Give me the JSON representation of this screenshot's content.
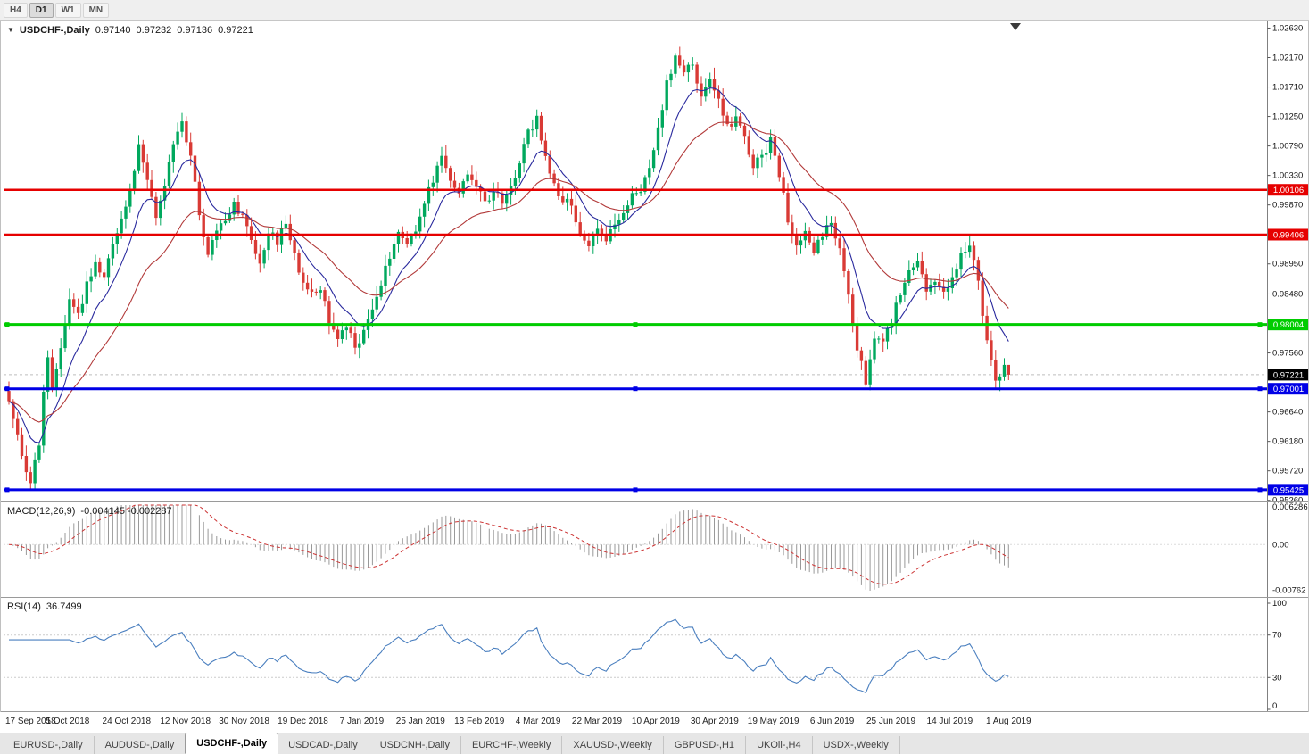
{
  "toolbar": {
    "timeframes": [
      {
        "label": "H4",
        "active": false
      },
      {
        "label": "D1",
        "active": true
      },
      {
        "label": "W1",
        "active": false
      },
      {
        "label": "MN",
        "active": false
      }
    ]
  },
  "header": {
    "symbol": "USDCHF-,Daily",
    "open": "0.97140",
    "high": "0.97232",
    "low": "0.97136",
    "close": "0.97221"
  },
  "price_axis": {
    "labels": [
      "1.02630",
      "1.02170",
      "1.01710",
      "1.01250",
      "1.00790",
      "1.00330",
      "0.99870",
      "0.98950",
      "0.98480",
      "0.97560",
      "0.96640",
      "0.96180",
      "0.95720",
      "0.95260"
    ]
  },
  "hlines": [
    {
      "price": 1.00106,
      "label": "1.00106",
      "color": "#e60000",
      "width": 2.5,
      "markers": false
    },
    {
      "price": 0.99406,
      "label": "0.99406",
      "color": "#e60000",
      "width": 2.5,
      "markers": false
    },
    {
      "price": 0.98004,
      "label": "0.98004",
      "color": "#00cc00",
      "width": 3,
      "markers": true
    },
    {
      "price": 0.97001,
      "label": "0.97001",
      "color": "#0000e6",
      "width": 3,
      "markers": true
    },
    {
      "price": 0.95425,
      "label": "0.95425",
      "color": "#0000e6",
      "width": 3,
      "markers": true
    }
  ],
  "current_price": {
    "value": 0.97221,
    "label": "0.97221"
  },
  "macd_panel": {
    "title": "MACD(12,26,9)",
    "values": "-0.004145 -0.002287",
    "axis_max": "0.006286",
    "axis_zero": "0.00",
    "axis_min": "-0.00762"
  },
  "rsi_panel": {
    "title": "RSI(14)",
    "value": "36.7499",
    "axis": [
      "100",
      "70",
      "30",
      "0"
    ],
    "levels": [
      70,
      30
    ]
  },
  "date_axis": [
    "17 Sep 2018",
    "5 Oct 2018",
    "24 Oct 2018",
    "12 Nov 2018",
    "30 Nov 2018",
    "19 Dec 2018",
    "7 Jan 2019",
    "25 Jan 2019",
    "13 Feb 2019",
    "4 Mar 2019",
    "22 Mar 2019",
    "10 Apr 2019",
    "30 Apr 2019",
    "19 May 2019",
    "6 Jun 2019",
    "25 Jun 2019",
    "14 Jul 2019",
    "1 Aug 2019"
  ],
  "tabs": [
    {
      "label": "EURUSD-,Daily",
      "active": false
    },
    {
      "label": "AUDUSD-,Daily",
      "active": false
    },
    {
      "label": "USDCHF-,Daily",
      "active": true
    },
    {
      "label": "USDCAD-,Daily",
      "active": false
    },
    {
      "label": "USDCNH-,Daily",
      "active": false
    },
    {
      "label": "EURCHF-,Weekly",
      "active": false
    },
    {
      "label": "XAUUSD-,Weekly",
      "active": false
    },
    {
      "label": "GBPUSD-,H1",
      "active": false
    },
    {
      "label": "UKOil-,H4",
      "active": false
    },
    {
      "label": "USDX-,Weekly",
      "active": false
    }
  ],
  "colors": {
    "up": "#00a85d",
    "down": "#d93a35",
    "ma_fast": "#2a2a9e",
    "ma_slow": "#b23a3a",
    "macd_hist": "#999999",
    "macd_signal": "#cc3333",
    "rsi": "#4a7fbf",
    "axis_text": "#111111",
    "separator": "#9a9a9a"
  },
  "chart_data": {
    "type": "candlestick",
    "symbol": "USDCHF",
    "timeframe": "Daily",
    "bars": 232,
    "date_range": [
      "17 Sep 2018",
      "14 Aug 2019"
    ],
    "price_range": [
      0.9526,
      1.0263
    ],
    "support_resistance": [
      1.00106,
      0.99406,
      0.98004,
      0.97001,
      0.95425
    ],
    "last_ohlc": {
      "open": 0.9714,
      "high": 0.97232,
      "low": 0.97136,
      "close": 0.97221
    },
    "indicators": {
      "macd": {
        "fast": 12,
        "slow": 26,
        "signal": 9,
        "last_main": -0.004145,
        "last_signal": -0.002287,
        "axis": [
          0.006286,
          0,
          -0.00762
        ]
      },
      "rsi": {
        "period": 14,
        "last": 36.7499,
        "levels": [
          30,
          70
        ]
      },
      "moving_averages": [
        {
          "type": "ema",
          "period": 10
        },
        {
          "type": "ema",
          "period": 28
        }
      ]
    },
    "close_path": [
      [
        0,
        0.968
      ],
      [
        1,
        0.9658
      ],
      [
        2,
        0.9628
      ],
      [
        4,
        0.9566
      ],
      [
        5,
        0.9551
      ],
      [
        7,
        0.9618
      ],
      [
        8,
        0.97
      ],
      [
        9,
        0.9746
      ],
      [
        10,
        0.9702
      ],
      [
        12,
        0.9762
      ],
      [
        14,
        0.984
      ],
      [
        16,
        0.9816
      ],
      [
        18,
        0.9861
      ],
      [
        20,
        0.9896
      ],
      [
        22,
        0.9871
      ],
      [
        24,
        0.9931
      ],
      [
        26,
        0.9966
      ],
      [
        28,
        1.0011
      ],
      [
        30,
        1.0076
      ],
      [
        32,
        1.0031
      ],
      [
        34,
        0.9966
      ],
      [
        36,
        1.0021
      ],
      [
        38,
        1.0076
      ],
      [
        40,
        1.0116
      ],
      [
        42,
        1.0061
      ],
      [
        44,
        0.9976
      ],
      [
        46,
        0.9906
      ],
      [
        48,
        0.9946
      ],
      [
        50,
        0.9966
      ],
      [
        52,
        0.9986
      ],
      [
        54,
        0.9966
      ],
      [
        56,
        0.9936
      ],
      [
        58,
        0.9896
      ],
      [
        60,
        0.9946
      ],
      [
        62,
        0.9931
      ],
      [
        64,
        0.9956
      ],
      [
        66,
        0.9906
      ],
      [
        68,
        0.9868
      ],
      [
        70,
        0.9846
      ],
      [
        72,
        0.9861
      ],
      [
        74,
        0.9806
      ],
      [
        76,
        0.9781
      ],
      [
        78,
        0.9801
      ],
      [
        80,
        0.9761
      ],
      [
        82,
        0.9786
      ],
      [
        84,
        0.9826
      ],
      [
        86,
        0.9866
      ],
      [
        88,
        0.9906
      ],
      [
        90,
        0.9946
      ],
      [
        92,
        0.9921
      ],
      [
        94,
        0.9951
      ],
      [
        96,
        0.9991
      ],
      [
        98,
        1.0026
      ],
      [
        100,
        1.0061
      ],
      [
        102,
        1.0026
      ],
      [
        104,
        1.0001
      ],
      [
        106,
        1.0036
      ],
      [
        108,
        1.0016
      ],
      [
        110,
        0.9991
      ],
      [
        112,
        1.0009
      ],
      [
        114,
        0.9993
      ],
      [
        116,
        1.0013
      ],
      [
        118,
        1.0051
      ],
      [
        120,
        1.0101
      ],
      [
        122,
        1.0119
      ],
      [
        124,
        1.0066
      ],
      [
        126,
        1.0019
      ],
      [
        128,
        0.9993
      ],
      [
        130,
        0.9986
      ],
      [
        132,
        0.9946
      ],
      [
        134,
        0.9921
      ],
      [
        136,
        0.9949
      ],
      [
        138,
        0.9936
      ],
      [
        140,
        0.9953
      ],
      [
        142,
        0.9976
      ],
      [
        144,
        0.9999
      ],
      [
        146,
        1.0013
      ],
      [
        148,
        1.0041
      ],
      [
        150,
        1.0106
      ],
      [
        152,
        1.0176
      ],
      [
        154,
        1.0219
      ],
      [
        156,
        1.0196
      ],
      [
        158,
        1.0211
      ],
      [
        160,
        1.0156
      ],
      [
        162,
        1.0181
      ],
      [
        164,
        1.0151
      ],
      [
        166,
        1.0111
      ],
      [
        168,
        1.0119
      ],
      [
        170,
        1.0091
      ],
      [
        172,
        1.0049
      ],
      [
        174,
        1.0059
      ],
      [
        176,
        1.0089
      ],
      [
        178,
        1.0036
      ],
      [
        180,
        0.9966
      ],
      [
        182,
        0.9929
      ],
      [
        184,
        0.9946
      ],
      [
        186,
        0.9913
      ],
      [
        188,
        0.9941
      ],
      [
        190,
        0.9959
      ],
      [
        192,
        0.9919
      ],
      [
        194,
        0.9846
      ],
      [
        196,
        0.9761
      ],
      [
        198,
        0.9713
      ],
      [
        200,
        0.9783
      ],
      [
        202,
        0.9769
      ],
      [
        204,
        0.9809
      ],
      [
        206,
        0.9846
      ],
      [
        208,
        0.9889
      ],
      [
        210,
        0.9903
      ],
      [
        212,
        0.9856
      ],
      [
        214,
        0.9869
      ],
      [
        216,
        0.9853
      ],
      [
        218,
        0.9871
      ],
      [
        220,
        0.9906
      ],
      [
        222,
        0.9929
      ],
      [
        224,
        0.9863
      ],
      [
        226,
        0.9776
      ],
      [
        228,
        0.9706
      ],
      [
        230,
        0.9739
      ],
      [
        231,
        0.97221
      ]
    ]
  }
}
